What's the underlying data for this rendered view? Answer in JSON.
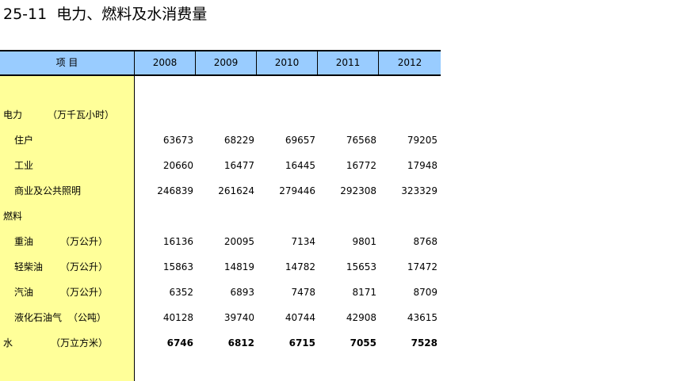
{
  "title": "25-11  电力、燃料及水消费量",
  "header": {
    "item": "项        目",
    "years": [
      "2008",
      "2009",
      "2010",
      "2011",
      "2012"
    ]
  },
  "rows": [
    {
      "label": "电力",
      "unit": "（万千瓦小时）",
      "values": [
        "",
        "",
        "",
        "",
        ""
      ]
    },
    {
      "label": "住户",
      "unit": "",
      "values": [
        "63673",
        "68229",
        "69657",
        "76568",
        "79205"
      ]
    },
    {
      "label": "工业",
      "unit": "",
      "values": [
        "20660",
        "16477",
        "16445",
        "16772",
        "17948"
      ]
    },
    {
      "label": "商业及公共照明",
      "unit": "",
      "values": [
        "246839",
        "261624",
        "279446",
        "292308",
        "323329"
      ]
    },
    {
      "label": "燃料",
      "unit": "",
      "values": [
        "",
        "",
        "",
        "",
        ""
      ]
    },
    {
      "label": "重油",
      "unit": "（万公升）",
      "values": [
        "16136",
        "20095",
        "7134",
        "9801",
        "8768"
      ]
    },
    {
      "label": "轻柴油",
      "unit": "（万公升）",
      "values": [
        "15863",
        "14819",
        "14782",
        "15653",
        "17472"
      ]
    },
    {
      "label": "汽油",
      "unit": "（万公升）",
      "values": [
        "6352",
        "6893",
        "7478",
        "8171",
        "8709"
      ]
    },
    {
      "label": "液化石油气",
      "unit": "（公吨）",
      "values": [
        "40128",
        "39740",
        "40744",
        "42908",
        "43615"
      ]
    },
    {
      "label": "水",
      "unit": "（万立方米）",
      "values": [
        "6746",
        "6812",
        "6715",
        "7055",
        "7528"
      ]
    }
  ]
}
